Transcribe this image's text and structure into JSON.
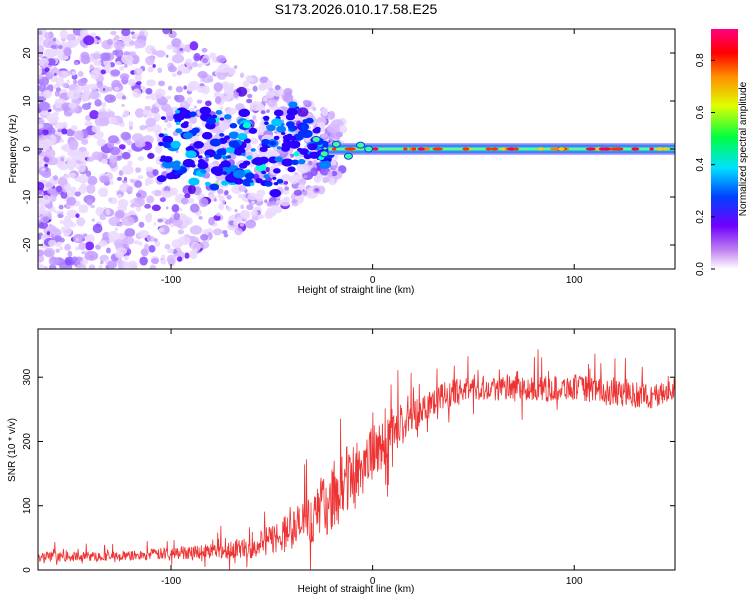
{
  "title": "S173.2026.010.17.58.E25",
  "chart_data": [
    {
      "type": "heatmap",
      "name": "spectrogram",
      "xlabel": "Height of straight line (km)",
      "ylabel": "Frequency (Hz)",
      "xlim": [
        -166,
        150
      ],
      "ylim": [
        -25,
        25
      ],
      "xticks": [
        -100,
        0,
        100
      ],
      "xtick_labels": [
        "-100",
        "0",
        "100"
      ],
      "yticks": [
        -20,
        -10,
        0,
        10,
        20
      ],
      "ytick_labels": [
        "-20",
        "-10",
        "0",
        "10",
        "20"
      ],
      "signal_band_center_hz": 0,
      "noise_region_end_km": -25,
      "colorbar": {
        "label": "Normalized spectral amplitude",
        "range": [
          0.0,
          0.92
        ],
        "ticks": [
          0.0,
          0.2,
          0.4,
          0.6,
          0.8
        ],
        "tick_labels": [
          "0.0",
          "0.2",
          "0.4",
          "0.6",
          "0.8"
        ],
        "colors": [
          "#ffffff",
          "#a020f0",
          "#0000ff",
          "#00ffff",
          "#00ff00",
          "#ffff00",
          "#ff8000",
          "#ff0000",
          "#ff00a0"
        ]
      }
    },
    {
      "type": "line",
      "name": "snr",
      "xlabel": "Height of straight line (km)",
      "ylabel": "SNR (10 * v/v)",
      "xlim": [
        -166,
        150
      ],
      "ylim": [
        0,
        375
      ],
      "xticks": [
        -100,
        0,
        100
      ],
      "xtick_labels": [
        "-100",
        "0",
        "100"
      ],
      "yticks": [
        0,
        100,
        200,
        300
      ],
      "ytick_labels": [
        "0",
        "100",
        "200",
        "300"
      ],
      "series": [
        {
          "name": "SNR",
          "color": "#ee3333",
          "trend_x": [
            -166,
            -120,
            -80,
            -60,
            -45,
            -30,
            -20,
            -10,
            0,
            10,
            20,
            30,
            50,
            80,
            100,
            120,
            140,
            150
          ],
          "trend_y": [
            20,
            22,
            30,
            35,
            55,
            80,
            110,
            150,
            180,
            210,
            240,
            265,
            285,
            280,
            285,
            275,
            270,
            280
          ],
          "spread": [
            15,
            15,
            25,
            35,
            55,
            80,
            100,
            110,
            90,
            70,
            55,
            45,
            40,
            40,
            40,
            40,
            40,
            40
          ]
        }
      ]
    }
  ]
}
